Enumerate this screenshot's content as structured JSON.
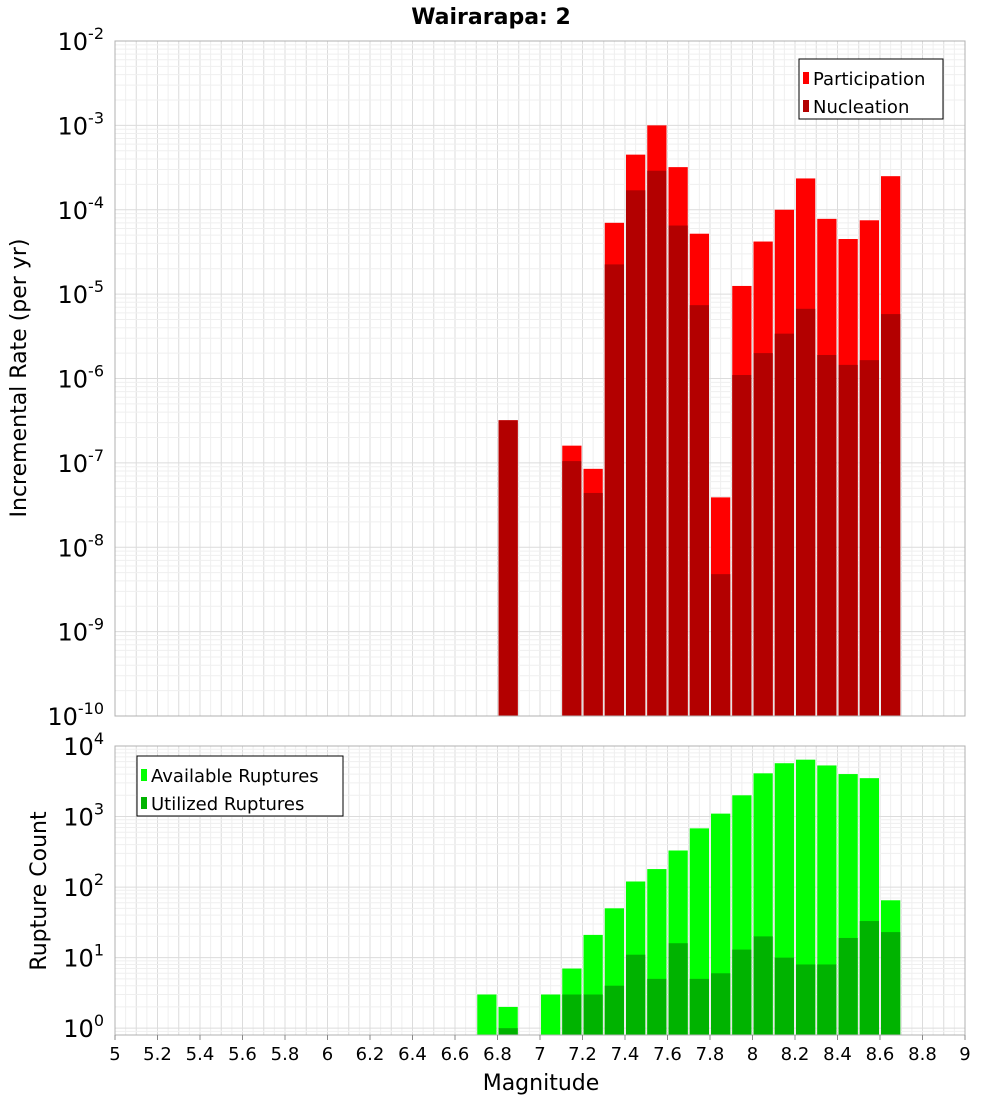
{
  "chart_data": [
    {
      "type": "bar",
      "title": "Wairarapa: 2",
      "ylabel": "Incremental Rate (per yr)",
      "xlabel": "",
      "x_range": [
        5,
        9
      ],
      "y_scale": "log",
      "ylim": [
        1e-10,
        0.01
      ],
      "y_tick_exponents": [
        -10,
        -9,
        -8,
        -7,
        -6,
        -5,
        -4,
        -3,
        -2
      ],
      "grid": true,
      "legend_position": "top-right",
      "bar_width": 0.1,
      "x": [
        6.85,
        7.15,
        7.25,
        7.35,
        7.45,
        7.55,
        7.65,
        7.75,
        7.85,
        7.95,
        8.05,
        8.15,
        8.25,
        8.35,
        8.45,
        8.55,
        8.65
      ],
      "series": [
        {
          "name": "Participation",
          "color": "#ff0000",
          "values": [
            3.2e-07,
            1.6e-07,
            8.5e-08,
            7e-05,
            0.00045,
            0.001,
            0.00032,
            5.2e-05,
            3.9e-08,
            1.25e-05,
            4.2e-05,
            0.0001,
            0.000235,
            7.8e-05,
            4.5e-05,
            7.5e-05,
            0.00025
          ]
        },
        {
          "name": "Nucleation",
          "color": "#b30000",
          "values": [
            3.2e-07,
            1.05e-07,
            4.4e-08,
            2.25e-05,
            0.00017,
            0.00029,
            6.5e-05,
            7.4e-06,
            4.8e-09,
            1.1e-06,
            2e-06,
            3.4e-06,
            6.7e-06,
            1.9e-06,
            1.45e-06,
            1.65e-06,
            5.8e-06
          ]
        }
      ]
    },
    {
      "type": "bar",
      "title": "",
      "ylabel": "Rupture Count",
      "xlabel": "Magnitude",
      "x_range": [
        5,
        9
      ],
      "x_ticks": [
        "5",
        "5.2",
        "5.4",
        "5.6",
        "5.8",
        "6",
        "6.2",
        "6.4",
        "6.6",
        "6.8",
        "7",
        "7.2",
        "7.4",
        "7.6",
        "7.8",
        "8",
        "8.2",
        "8.4",
        "8.6",
        "8.8",
        "9"
      ],
      "y_scale": "log",
      "ylim": [
        0.8,
        10000
      ],
      "y_tick_exponents": [
        0,
        1,
        2,
        3,
        4
      ],
      "grid": true,
      "legend_position": "top-left",
      "bar_width": 0.1,
      "x": [
        6.75,
        6.85,
        7.05,
        7.15,
        7.25,
        7.35,
        7.45,
        7.55,
        7.65,
        7.75,
        7.85,
        7.95,
        8.05,
        8.15,
        8.25,
        8.35,
        8.45,
        8.55,
        8.65
      ],
      "series": [
        {
          "name": "Available Ruptures",
          "color": "#00ff00",
          "values": [
            3,
            2,
            3,
            7,
            21,
            50,
            120,
            180,
            330,
            680,
            1100,
            2000,
            4100,
            5700,
            6400,
            5300,
            4000,
            3500,
            65
          ]
        },
        {
          "name": "Utilized Ruptures",
          "color": "#00b300",
          "values": [
            null,
            1,
            null,
            3,
            3,
            4,
            11,
            5,
            16,
            5,
            6,
            13,
            20,
            10,
            8,
            8,
            19,
            33,
            23
          ]
        }
      ]
    }
  ]
}
